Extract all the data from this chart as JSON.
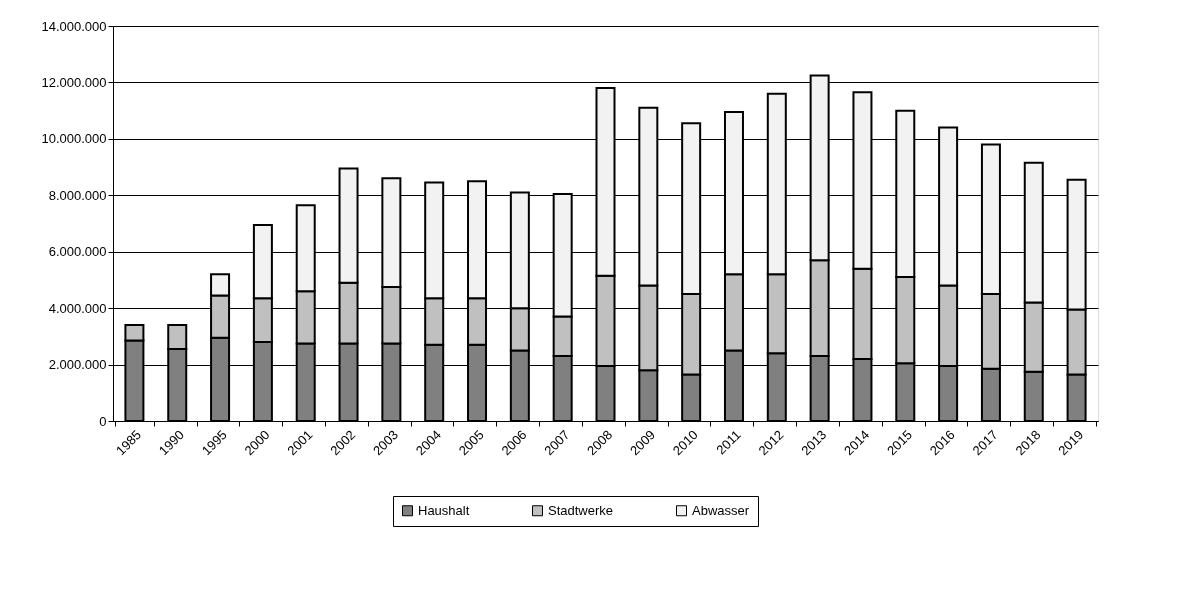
{
  "chart_data": {
    "type": "bar",
    "stacked": true,
    "categories": [
      "1985",
      "1990",
      "1995",
      "2000",
      "2001",
      "2002",
      "2003",
      "2004",
      "2005",
      "2006",
      "2007",
      "2008",
      "2009",
      "2010",
      "2011",
      "2012",
      "2013",
      "2014",
      "2015",
      "2016",
      "2017",
      "2018",
      "2019"
    ],
    "series": [
      {
        "name": "Haushalt",
        "color": "#808080",
        "values": [
          2850000,
          2550000,
          2950000,
          2800000,
          2750000,
          2750000,
          2750000,
          2700000,
          2700000,
          2500000,
          2300000,
          1950000,
          1800000,
          1650000,
          2500000,
          2400000,
          2300000,
          2200000,
          2050000,
          1950000,
          1850000,
          1750000,
          1650000
        ]
      },
      {
        "name": "Stadtwerke",
        "color": "#c0c0c0",
        "values": [
          550000,
          850000,
          1500000,
          1550000,
          1850000,
          2150000,
          2000000,
          1650000,
          1650000,
          1500000,
          1400000,
          3200000,
          3000000,
          2850000,
          2700000,
          2800000,
          3400000,
          3200000,
          3050000,
          2850000,
          2650000,
          2450000,
          2300000
        ]
      },
      {
        "name": "Abwasser",
        "color": "#f2f2f2",
        "values": [
          null,
          null,
          750000,
          2600000,
          3050000,
          4050000,
          3850000,
          4100000,
          4150000,
          4100000,
          4350000,
          6650000,
          6300000,
          6050000,
          5750000,
          6400000,
          6550000,
          6250000,
          5900000,
          5600000,
          5300000,
          4950000,
          4600000
        ]
      }
    ],
    "ylim": [
      0,
      14000000
    ],
    "yticks": [
      {
        "value": 0,
        "label": "0"
      },
      {
        "value": 2000000,
        "label": "2.000.000"
      },
      {
        "value": 4000000,
        "label": "4.000.000"
      },
      {
        "value": 6000000,
        "label": "6.000.000"
      },
      {
        "value": 8000000,
        "label": "8.000.000"
      },
      {
        "value": 10000000,
        "label": "10.000.000"
      },
      {
        "value": 12000000,
        "label": "12.000.000"
      },
      {
        "value": 14000000,
        "label": "14.000.000"
      }
    ],
    "grid": "y",
    "legend": "bottom"
  }
}
